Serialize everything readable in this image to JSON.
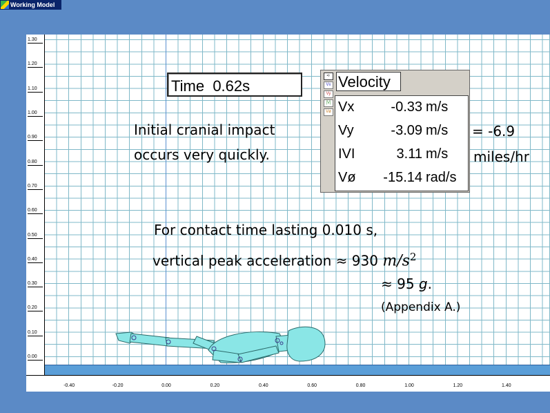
{
  "app": {
    "title": "Working Model"
  },
  "rulers": {
    "y_ticks": [
      "1.30",
      "1.20",
      "1.10",
      "1.00",
      "0.90",
      "0.80",
      "0.70",
      "0.60",
      "0.50",
      "0.40",
      "0.30",
      "0.20",
      "0.10",
      "0.00"
    ],
    "x_ticks": [
      "-0.40",
      "-0.20",
      "0.00",
      "0.20",
      "0.40",
      "0.60",
      "0.80",
      "1.00",
      "1.20",
      "1.40"
    ]
  },
  "time_meter": {
    "label": "Time",
    "value": "0.62",
    "unit": "s"
  },
  "velocity_meter": {
    "title": "Velocity",
    "tabs": [
      "Vx",
      "Vy",
      "|V|",
      "Vø"
    ],
    "rows": [
      {
        "label": "Vx",
        "value": "-0.33",
        "unit": "m/s"
      },
      {
        "label": "Vy",
        "value": "-3.09",
        "unit": "m/s"
      },
      {
        "label": "IVI",
        "value": "3.11",
        "unit": "m/s"
      },
      {
        "label": "Vø",
        "value": "-15.14",
        "unit": "rad/s"
      }
    ]
  },
  "annotations": {
    "cranial_line1": "Initial cranial impact",
    "cranial_line2": "occurs very quickly.",
    "conversion_value": "= -6.9",
    "conversion_unit": "miles/hr",
    "contact_line": "For contact time lasting 0.010 s,",
    "accel_prefix": "vertical peak acceleration ≈ 930 ",
    "accel_unit": "m/s",
    "accel_exp": "2",
    "g_prefix": "≈ 95 ",
    "g_unit": "g",
    "g_suffix": ".",
    "appendix": "(Appendix A.)"
  },
  "colors": {
    "grid": "#7fb8c8",
    "ground": "#5a9ed8",
    "figure": "#8ae6e6",
    "background": "#5b8ac6"
  }
}
